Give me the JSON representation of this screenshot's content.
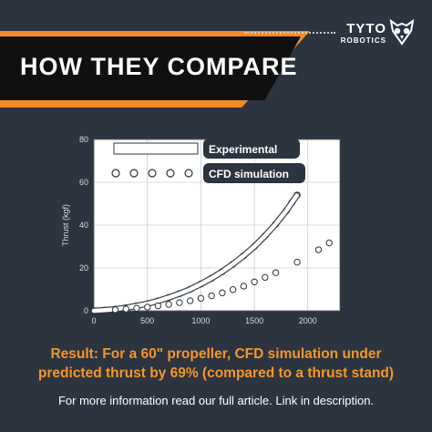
{
  "header": {
    "title": "HOW THEY COMPARE",
    "brand_line1": "TYTO",
    "brand_line2": "ROBOTICS",
    "logo_icon": "owl-icon"
  },
  "colors": {
    "background": "#2c3440",
    "accent": "#f28c28",
    "banner": "#101010",
    "text": "#ffffff"
  },
  "chart_data": {
    "type": "scatter",
    "title": "",
    "xlabel": "",
    "ylabel": "Thrust (kgf)",
    "xlim": [
      0,
      2300
    ],
    "ylim": [
      0,
      80
    ],
    "xticks": [
      0,
      500,
      1000,
      1500,
      2000
    ],
    "yticks": [
      0,
      20,
      40,
      60,
      80
    ],
    "grid": true,
    "legend_position": "top-left",
    "series": [
      {
        "name": "Experimental",
        "style": "dense-line",
        "color": "#ffffff",
        "x": [
          0,
          100,
          200,
          300,
          400,
          500,
          600,
          700,
          800,
          900,
          1000,
          1100,
          1200,
          1300,
          1400,
          1500,
          1600,
          1700,
          1800,
          1850,
          1900
        ],
        "y": [
          0,
          0.3,
          0.7,
          1.4,
          2.3,
          3.3,
          4.6,
          6.2,
          8.0,
          10.0,
          12.5,
          15.2,
          18.3,
          21.8,
          25.7,
          30.0,
          35.0,
          40.5,
          46.8,
          50.5,
          54.0
        ]
      },
      {
        "name": "CFD simulation",
        "style": "dots",
        "color": "#ffffff",
        "x": [
          200,
          300,
          400,
          500,
          600,
          700,
          800,
          900,
          1000,
          1100,
          1200,
          1300,
          1400,
          1500,
          1600,
          1700,
          1900,
          2100,
          2200
        ],
        "y": [
          0.5,
          0.8,
          1.2,
          1.7,
          2.3,
          3.0,
          3.8,
          4.7,
          5.8,
          7.0,
          8.4,
          9.9,
          11.5,
          13.5,
          15.6,
          17.8,
          22.7,
          28.5,
          31.7
        ]
      }
    ]
  },
  "result": {
    "line1": "Result: For a 60\" propeller, CFD simulation under",
    "line2": "predicted thrust by 69% (compared to a thrust stand)"
  },
  "footer": {
    "text": "For more information read our full article. Link in description."
  }
}
